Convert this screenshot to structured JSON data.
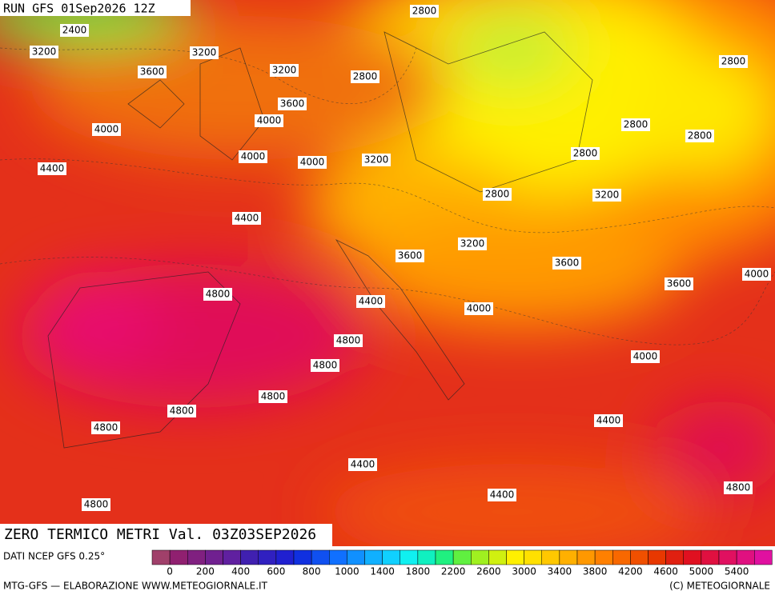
{
  "header": {
    "run": "RUN GFS 01Sep2026 12Z"
  },
  "map": {
    "title": "ZERO TERMICO METRI Val. 03Z03SEP2026",
    "contour_labels": [
      2800,
      2400,
      3200,
      3200,
      3600,
      3200,
      2800,
      2800,
      3600,
      4000,
      4000,
      2800,
      2800,
      2800,
      4000,
      4000,
      3200,
      4400,
      2800,
      3200,
      4400,
      3200,
      3600,
      3600,
      4000,
      3600,
      4800,
      4400,
      4000,
      4800,
      4000,
      4800,
      4800,
      4800,
      4800,
      4400,
      4400,
      4400,
      4800,
      4800
    ]
  },
  "footer": {
    "source": "DATI NCEP GFS 0.25°",
    "credit": "MTG-GFS — ELABORAZIONE WWW.METEOGIORNALE.IT",
    "copyright": "(C) METEOGIORNALE",
    "colorbar_labels": [
      0,
      200,
      400,
      600,
      800,
      1000,
      1400,
      1800,
      2200,
      2600,
      3000,
      3400,
      3800,
      4200,
      4600,
      5000,
      5400
    ]
  }
}
